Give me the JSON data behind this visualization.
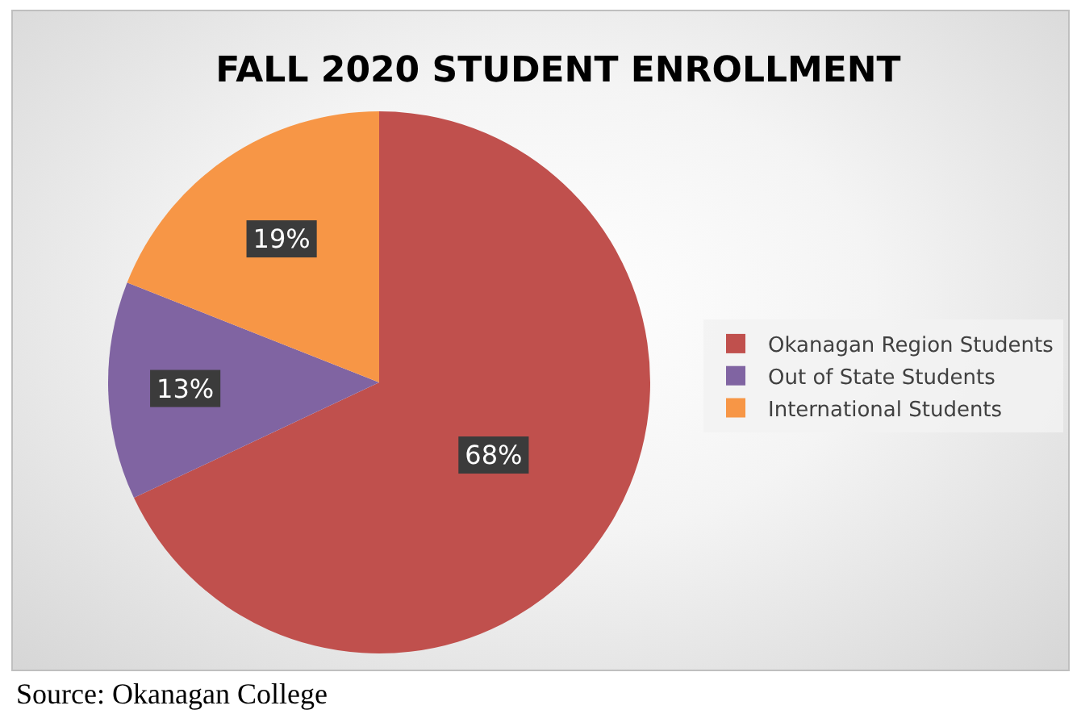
{
  "chart_data": {
    "type": "pie",
    "title": "FALL 2020 STUDENT ENROLLMENT",
    "categories": [
      "Okanagan Region Students",
      "Out of State Students",
      "International Students"
    ],
    "values": [
      68,
      13,
      19
    ],
    "colors": [
      "#c0504d",
      "#8064a2",
      "#f79646"
    ],
    "value_labels": [
      "68%",
      "13%",
      "19%"
    ],
    "legend": "right",
    "annotations": [
      "Source: Okanagan College"
    ]
  }
}
